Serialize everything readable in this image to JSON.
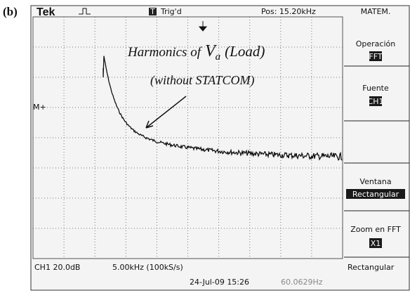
{
  "figure_label": "(b)",
  "header": {
    "brand": "Tek",
    "trigger_icon": "T",
    "trigger_status": "Trig'd",
    "position": "Pos: 15.20kHz",
    "menu_title": "MATEM."
  },
  "menu": [
    {
      "label": "Operación",
      "value": "FFT"
    },
    {
      "label": "Fuente",
      "value": "CH1"
    },
    {
      "label": "Ventana",
      "value": "Rectangular"
    },
    {
      "label": "Zoom en FFT",
      "value": "X1"
    }
  ],
  "marker": "M+",
  "annotation": {
    "line1_prefix": "Harmonics of",
    "symbol": "V",
    "subscript": "a",
    "line1_suffix": "(Load)",
    "line2": "(without STATCOM)"
  },
  "footer": {
    "channel": "CH1 20.0dB",
    "timebase": "5.00kHz (100kS/s)",
    "window": "Rectangular",
    "datetime": "24-Jul-09 15:26",
    "frequency": "60.0629Hz"
  }
}
